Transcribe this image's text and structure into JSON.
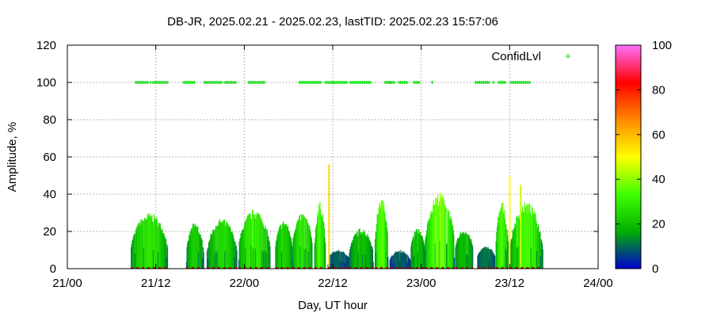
{
  "chart_data": {
    "type": "bar",
    "title": "DB-JR, 2025.02.21 - 2025.02.23, lastTID: 2025.02.23 15:57:06",
    "xlabel": "Day, UT hour",
    "ylabel": "Amplitude, %",
    "xlim": [
      0,
      72
    ],
    "ylim": [
      0,
      120
    ],
    "xticks": [
      {
        "value": 0,
        "label": "21/00"
      },
      {
        "value": 12,
        "label": "21/12"
      },
      {
        "value": 24,
        "label": "22/00"
      },
      {
        "value": 36,
        "label": "22/12"
      },
      {
        "value": 48,
        "label": "23/00"
      },
      {
        "value": 60,
        "label": "23/12"
      },
      {
        "value": 72,
        "label": "24/00"
      }
    ],
    "yticks": [
      0,
      20,
      40,
      60,
      80,
      100,
      120
    ],
    "grid": true,
    "legend": {
      "position": "top-right",
      "entries": [
        "ConfidLvl"
      ]
    },
    "colorbar": {
      "min": 0,
      "max": 100,
      "ticks": [
        0,
        20,
        40,
        60,
        80,
        100
      ],
      "stops": [
        "#0000d0",
        "#00b000",
        "#40ff00",
        "#ffff00",
        "#ff8800",
        "#ff0000",
        "#ff70ff"
      ]
    },
    "series": [
      {
        "name": "Amplitude",
        "color_by_value": true,
        "segments": [
          {
            "x": [
              8.6,
              13.6
            ],
            "peak": 30,
            "base": 10
          },
          {
            "x": [
              16.1,
              18.5
            ],
            "peak": 25,
            "base": 6
          },
          {
            "x": [
              18.9,
              23.0
            ],
            "peak": 27,
            "base": 8
          },
          {
            "x": [
              23.2,
              27.5
            ],
            "peak": 32,
            "base": 10
          },
          {
            "x": [
              28.2,
              30.5
            ],
            "peak": 26,
            "base": 10
          },
          {
            "x": [
              30.5,
              33.2
            ],
            "peak": 30,
            "base": 12
          },
          {
            "x": [
              33.5,
              35.0
            ],
            "peak": 36,
            "base": 8
          },
          {
            "x": [
              35.3,
              38.2
            ],
            "peak": 10,
            "base": 5
          },
          {
            "x": [
              38.2,
              41.5
            ],
            "peak": 22,
            "base": 7
          },
          {
            "x": [
              41.7,
              43.5
            ],
            "peak": 38,
            "base": 12
          },
          {
            "x": [
              43.7,
              46.5
            ],
            "peak": 10,
            "base": 4
          },
          {
            "x": [
              46.5,
              48.5
            ],
            "peak": 22,
            "base": 8
          },
          {
            "x": [
              48.5,
              52.5
            ],
            "peak": 41,
            "base": 12
          },
          {
            "x": [
              52.6,
              55.0
            ],
            "peak": 21,
            "base": 10
          },
          {
            "x": [
              55.6,
              58.0
            ],
            "peak": 12,
            "base": 6
          },
          {
            "x": [
              58.1,
              59.8
            ],
            "peak": 36,
            "base": 10
          },
          {
            "x": [
              60.0,
              64.5
            ],
            "peak": 36,
            "base": 8
          }
        ],
        "spikes": [
          {
            "x": 35.5,
            "value": 56
          },
          {
            "x": 60.0,
            "value": 50
          },
          {
            "x": 61.5,
            "value": 45
          }
        ]
      },
      {
        "name": "ConfidLvl",
        "color": "#00dd00",
        "y": 100,
        "x_ranges": [
          [
            9.3,
            11.0
          ],
          [
            11.6,
            13.7
          ],
          [
            15.8,
            17.3
          ],
          [
            18.6,
            21.0
          ],
          [
            21.4,
            23.0
          ],
          [
            24.6,
            26.8
          ],
          [
            31.5,
            34.4
          ],
          [
            35.0,
            38.0
          ],
          [
            38.4,
            41.1
          ],
          [
            43.1,
            44.5
          ],
          [
            45.0,
            46.1
          ],
          [
            47.0,
            47.8
          ],
          [
            55.4,
            57.3
          ],
          [
            58.5,
            59.4
          ],
          [
            60.2,
            62.8
          ]
        ],
        "x_points": [
          49.5,
          11.3,
          43.7,
          57.8
        ]
      }
    ]
  }
}
